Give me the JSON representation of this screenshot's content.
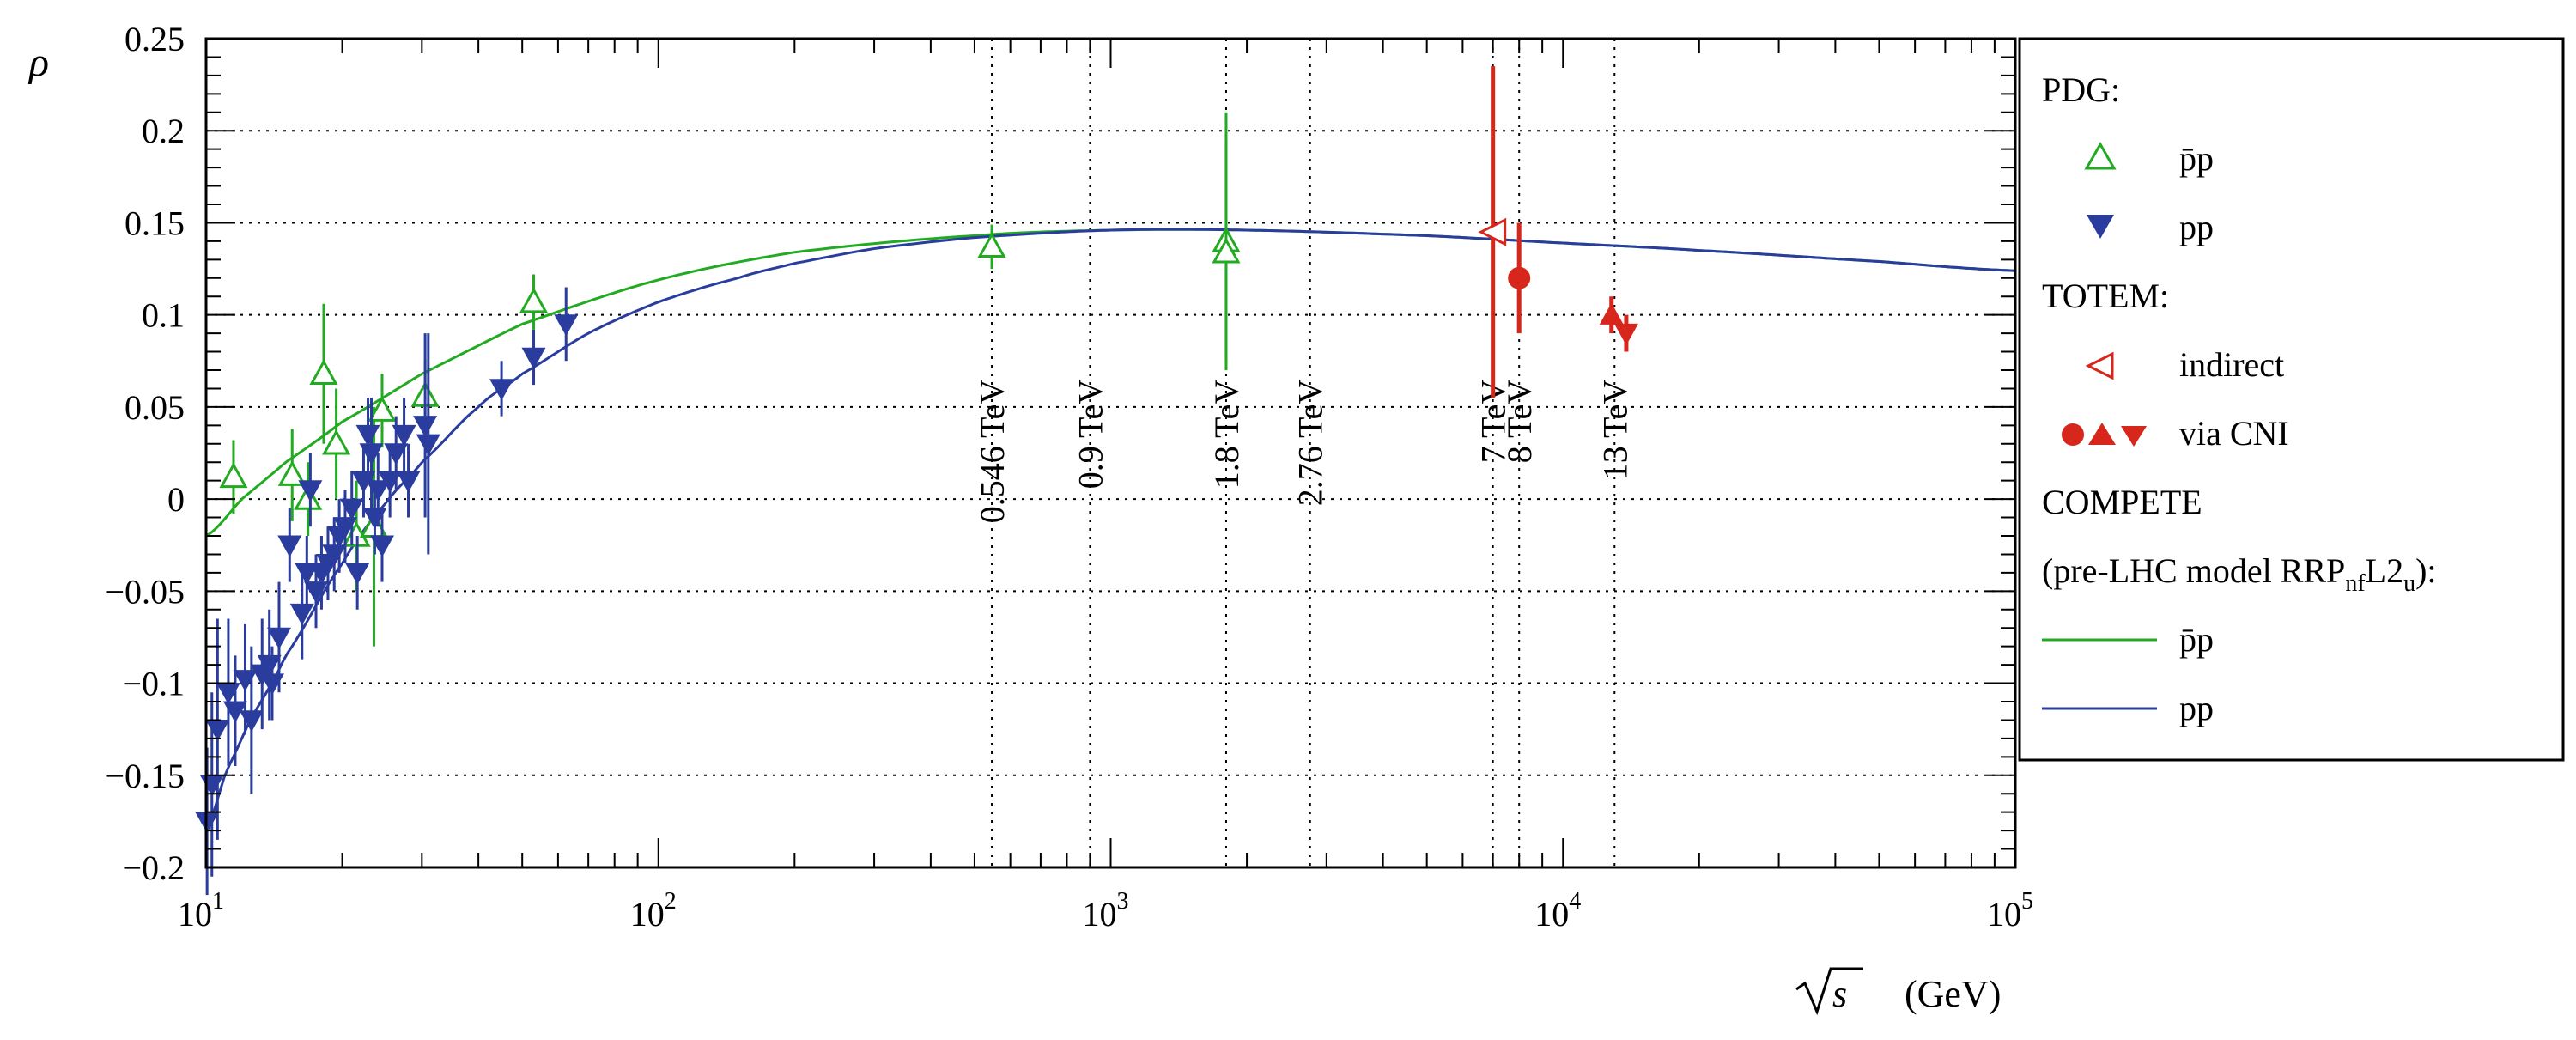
{
  "chart_data": {
    "type": "scatter",
    "x_scale": "log",
    "xlim": [
      10,
      100000
    ],
    "ylim": [
      -0.2,
      0.25
    ],
    "ylabel": "ρ",
    "xlabel": "√s",
    "xlabel_unit": "(GeV)",
    "grid": "dotted horizontal lines at y ticks",
    "x_ticks": [
      {
        "value": 10,
        "base": "10",
        "exp": "1"
      },
      {
        "value": 100,
        "base": "10",
        "exp": "2"
      },
      {
        "value": 1000,
        "base": "10",
        "exp": "3"
      },
      {
        "value": 10000,
        "base": "10",
        "exp": "4"
      },
      {
        "value": 100000,
        "base": "10",
        "exp": "5"
      }
    ],
    "y_ticks": [
      {
        "value": -0.2,
        "label": "−0.2"
      },
      {
        "value": -0.15,
        "label": "−0.15"
      },
      {
        "value": -0.1,
        "label": "−0.1"
      },
      {
        "value": -0.05,
        "label": "−0.05"
      },
      {
        "value": 0,
        "label": "0"
      },
      {
        "value": 0.05,
        "label": "0.05"
      },
      {
        "value": 0.1,
        "label": "0.1"
      },
      {
        "value": 0.15,
        "label": "0.15"
      },
      {
        "value": 0.2,
        "label": "0.2"
      },
      {
        "value": 0.25,
        "label": "0.25"
      }
    ],
    "energy_lines": [
      {
        "x": 546,
        "label": "0.546 TeV"
      },
      {
        "x": 900,
        "label": "0.9 TeV"
      },
      {
        "x": 1800,
        "label": "1.8 TeV"
      },
      {
        "x": 2760,
        "label": "2.76 TeV"
      },
      {
        "x": 7000,
        "label": "7 TeV"
      },
      {
        "x": 8000,
        "label": "8 TeV"
      },
      {
        "x": 13000,
        "label": "13 TeV"
      }
    ],
    "series": [
      {
        "name": "p̄p",
        "group": "PDG",
        "marker": "open-triangle-up",
        "color": "#22aa22",
        "points": [
          {
            "x": 11.5,
            "y": 0.012,
            "err": 0.02
          },
          {
            "x": 15.5,
            "y": 0.013,
            "err": 0.025
          },
          {
            "x": 16.8,
            "y": 0.0,
            "err": 0.02
          },
          {
            "x": 18.2,
            "y": 0.068,
            "err": 0.038
          },
          {
            "x": 19.4,
            "y": 0.03,
            "err": 0.03
          },
          {
            "x": 21.5,
            "y": -0.02,
            "err": 0.03
          },
          {
            "x": 23.5,
            "y": -0.015,
            "err": 0.065
          },
          {
            "x": 24.5,
            "y": 0.048,
            "err": 0.02
          },
          {
            "x": 30.5,
            "y": 0.056,
            "err": 0.02
          },
          {
            "x": 53.0,
            "y": 0.107,
            "err": 0.015
          },
          {
            "x": 546,
            "y": 0.137,
            "err": 0.012
          },
          {
            "x": 1800,
            "y": 0.14,
            "err": 0.07
          },
          {
            "x": 1800,
            "y": 0.134,
            "err": 0.06
          }
        ]
      },
      {
        "name": "pp",
        "group": "PDG",
        "marker": "filled-triangle-down",
        "color": "#2a3d9e",
        "points": [
          {
            "x": 10.05,
            "y": -0.175,
            "err": 0.04
          },
          {
            "x": 10.3,
            "y": -0.155,
            "err": 0.05
          },
          {
            "x": 10.6,
            "y": -0.125,
            "err": 0.06
          },
          {
            "x": 11.2,
            "y": -0.105,
            "err": 0.04
          },
          {
            "x": 11.6,
            "y": -0.115,
            "err": 0.03
          },
          {
            "x": 12.2,
            "y": -0.098,
            "err": 0.03
          },
          {
            "x": 12.6,
            "y": -0.12,
            "err": 0.04
          },
          {
            "x": 13.3,
            "y": -0.095,
            "err": 0.03
          },
          {
            "x": 13.8,
            "y": -0.09,
            "err": 0.03
          },
          {
            "x": 14.0,
            "y": -0.1,
            "err": 0.02
          },
          {
            "x": 14.5,
            "y": -0.075,
            "err": 0.03
          },
          {
            "x": 15.3,
            "y": -0.025,
            "err": 0.02
          },
          {
            "x": 16.3,
            "y": -0.062,
            "err": 0.025
          },
          {
            "x": 16.7,
            "y": -0.04,
            "err": 0.02
          },
          {
            "x": 17.0,
            "y": 0.005,
            "err": 0.02
          },
          {
            "x": 17.5,
            "y": -0.05,
            "err": 0.02
          },
          {
            "x": 18.0,
            "y": -0.04,
            "err": 0.02
          },
          {
            "x": 18.6,
            "y": -0.035,
            "err": 0.02
          },
          {
            "x": 19.2,
            "y": -0.03,
            "err": 0.02
          },
          {
            "x": 19.7,
            "y": -0.02,
            "err": 0.02
          },
          {
            "x": 20.3,
            "y": -0.015,
            "err": 0.02
          },
          {
            "x": 21.0,
            "y": -0.005,
            "err": 0.02
          },
          {
            "x": 21.6,
            "y": -0.04,
            "err": 0.02
          },
          {
            "x": 22.3,
            "y": 0.01,
            "err": 0.02
          },
          {
            "x": 22.8,
            "y": 0.035,
            "err": 0.02
          },
          {
            "x": 23.2,
            "y": 0.025,
            "err": 0.03
          },
          {
            "x": 23.6,
            "y": -0.01,
            "err": 0.02
          },
          {
            "x": 24.0,
            "y": 0.005,
            "err": 0.02
          },
          {
            "x": 24.5,
            "y": -0.025,
            "err": 0.02
          },
          {
            "x": 25.5,
            "y": 0.01,
            "err": 0.02
          },
          {
            "x": 26.3,
            "y": 0.025,
            "err": 0.02
          },
          {
            "x": 27.4,
            "y": 0.035,
            "err": 0.02
          },
          {
            "x": 28.0,
            "y": 0.01,
            "err": 0.02
          },
          {
            "x": 30.5,
            "y": 0.04,
            "err": 0.05
          },
          {
            "x": 31.0,
            "y": 0.03,
            "err": 0.06
          },
          {
            "x": 45.0,
            "y": 0.06,
            "err": 0.015
          },
          {
            "x": 53.0,
            "y": 0.077,
            "err": 0.015
          },
          {
            "x": 62.5,
            "y": 0.095,
            "err": 0.02
          }
        ]
      },
      {
        "name": "indirect",
        "group": "TOTEM",
        "marker": "open-triangle-left",
        "color": "#d7261b",
        "points": [
          {
            "x": 7000,
            "y": 0.145,
            "err": 0.09
          }
        ]
      },
      {
        "name": "via CNI",
        "group": "TOTEM",
        "marker": "filled-mixed",
        "color": "#d7261b",
        "points": [
          {
            "x": 8000,
            "y": 0.12,
            "err": 0.03,
            "shape": "circle"
          },
          {
            "x": 12800,
            "y": 0.1,
            "err": 0.01,
            "shape": "triangle-up"
          },
          {
            "x": 13800,
            "y": 0.09,
            "err": 0.01,
            "shape": "triangle-down"
          }
        ]
      }
    ],
    "curves": [
      {
        "name": "p̄p",
        "color": "#22aa22",
        "points": [
          [
            10,
            -0.02
          ],
          [
            12,
            0.0
          ],
          [
            15,
            0.02
          ],
          [
            20,
            0.042
          ],
          [
            30,
            0.068
          ],
          [
            50,
            0.095
          ],
          [
            100,
            0.119
          ],
          [
            200,
            0.134
          ],
          [
            500,
            0.143
          ],
          [
            1000,
            0.146
          ],
          [
            2000,
            0.146
          ],
          [
            5000,
            0.143
          ],
          [
            10000,
            0.139
          ],
          [
            20000,
            0.135
          ],
          [
            50000,
            0.129
          ],
          [
            100000,
            0.124
          ]
        ]
      },
      {
        "name": "pp",
        "color": "#2a3d9e",
        "points": [
          [
            10,
            -0.18
          ],
          [
            11,
            -0.15
          ],
          [
            12.5,
            -0.12
          ],
          [
            15,
            -0.085
          ],
          [
            20,
            -0.035
          ],
          [
            25,
            -0.002
          ],
          [
            30,
            0.02
          ],
          [
            40,
            0.05
          ],
          [
            50,
            0.068
          ],
          [
            70,
            0.09
          ],
          [
            100,
            0.107
          ],
          [
            150,
            0.12
          ],
          [
            200,
            0.128
          ],
          [
            300,
            0.136
          ],
          [
            500,
            0.142
          ],
          [
            1000,
            0.146
          ],
          [
            2000,
            0.146
          ],
          [
            5000,
            0.143
          ],
          [
            10000,
            0.139
          ],
          [
            20000,
            0.135
          ],
          [
            50000,
            0.129
          ],
          [
            100000,
            0.124
          ]
        ]
      }
    ]
  },
  "legend": {
    "placement": "right",
    "pdg_header": "PDG:",
    "pdg_pbarp": "p̄p",
    "pdg_pp": "pp",
    "totem_header": "TOTEM:",
    "totem_indirect": "indirect",
    "totem_cni": "via CNI",
    "compete_header": "COMPETE",
    "compete_model_prefix": "(pre-LHC model RRP",
    "compete_model_sub1": "nf",
    "compete_model_mid": "L2",
    "compete_model_sub2": "u",
    "compete_model_suffix": "):",
    "compete_pbarp": "p̄p",
    "compete_pp": "pp"
  }
}
